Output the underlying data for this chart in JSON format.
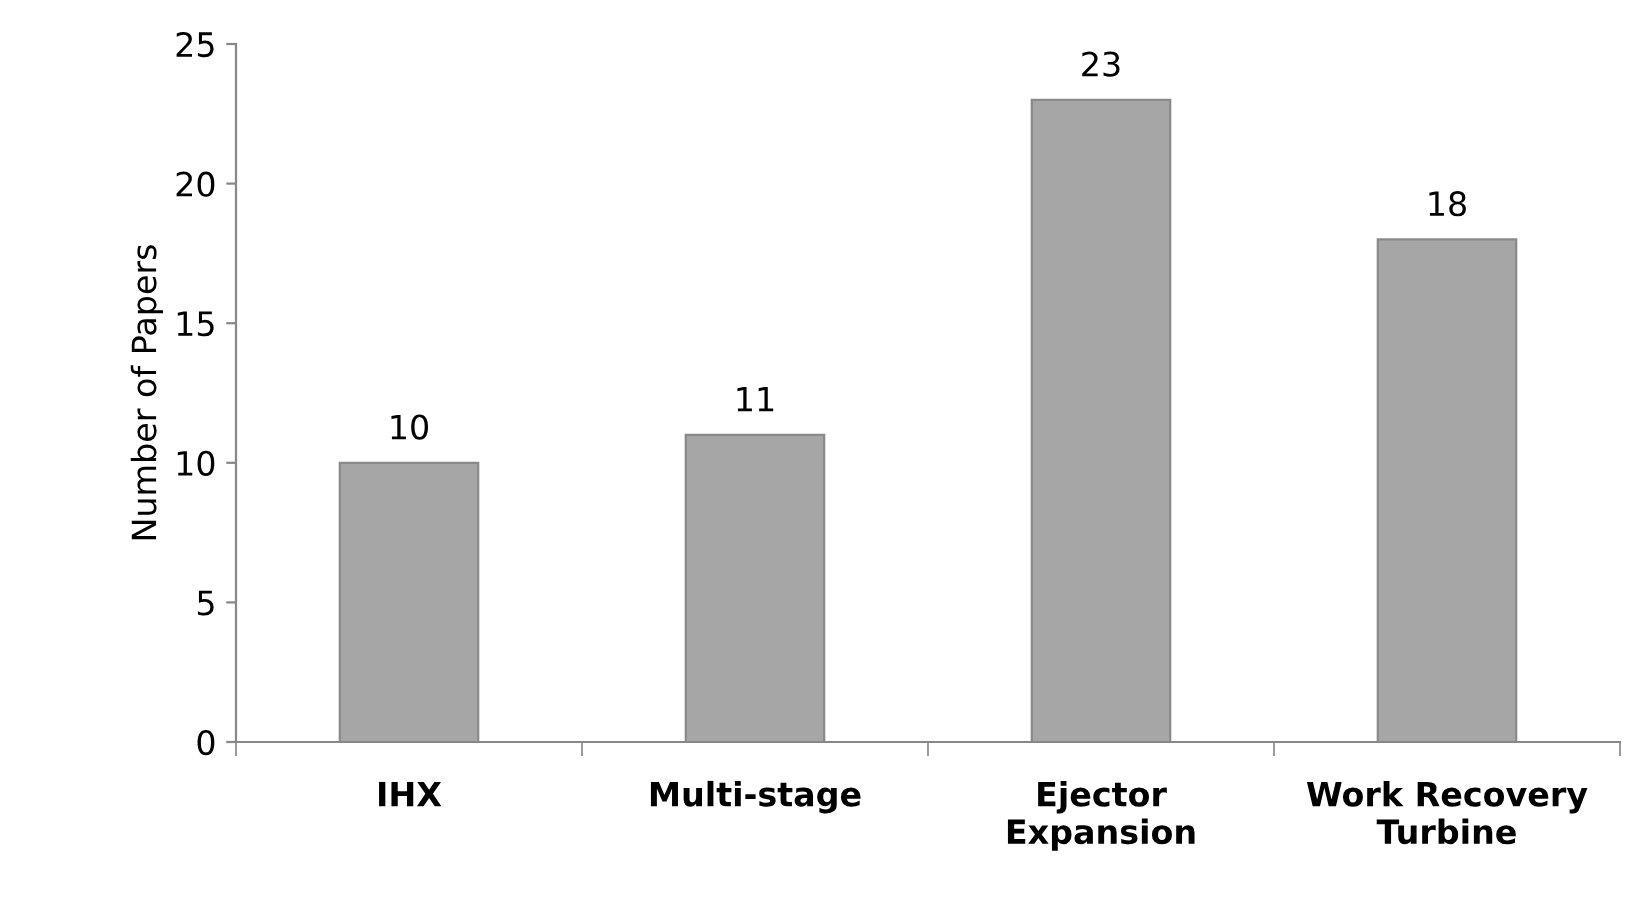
{
  "chart_data": {
    "type": "bar",
    "ylabel": "Number of Papers",
    "categories": [
      "IHX",
      "Multi-stage",
      "Ejector\nExpansion",
      "Work Recovery\nTurbine"
    ],
    "values": [
      10,
      11,
      23,
      18
    ],
    "color": "#a6a6a6",
    "ylim": [
      0,
      25
    ],
    "yticks": [
      0,
      5,
      10,
      15,
      20,
      25
    ],
    "grid": false,
    "data_labels": true
  }
}
